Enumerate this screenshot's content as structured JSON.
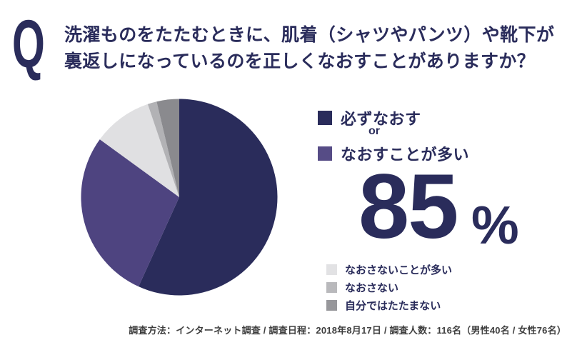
{
  "header": {
    "q_mark": "Q",
    "question_line1": "洗濯ものをたたむときに、肌着（シャツやパンツ）や靴下が",
    "question_line2": "裏返しになっているのを正しくなおすことがありますか？"
  },
  "chart_data": {
    "type": "pie",
    "title": "洗濯ものをたたむときに、肌着（シャツやパンツ）や靴下が裏返しになっているのを正しくなおすことがありますか？",
    "start_angle_deg": 0,
    "direction": "clockwise",
    "legend_position": "right",
    "slices": [
      {
        "label": "必ずなおす",
        "value": 56.8,
        "color": "#2A2C5B"
      },
      {
        "label": "なおすことが多い",
        "value": 28.2,
        "color": "#4E4480"
      },
      {
        "label": "なおさないことが多い",
        "value": 9.8,
        "color": "#E0E0E2"
      },
      {
        "label": "なおさない",
        "value": 1.5,
        "color": "#B2B2B5"
      },
      {
        "label": "自分ではたたまない",
        "value": 3.7,
        "color": "#8A8A8E"
      }
    ],
    "highlight": {
      "combined_labels": [
        "必ずなおす",
        "なおすことが多い"
      ],
      "combined_value_pct": 85
    }
  },
  "answer_panel": {
    "legend_primary": [
      {
        "label": "必ずなおす",
        "color": "#2A2C5B"
      },
      {
        "label": "なおすことが多い",
        "color": "#564C86"
      }
    ],
    "or_text": "or",
    "percent_value": "85",
    "percent_sign": "%",
    "legend_secondary": [
      {
        "label": "なおさないことが多い",
        "color": "#E2E2E4"
      },
      {
        "label": "なおさない",
        "color": "#B9B9BC"
      },
      {
        "label": "自分ではたたまない",
        "color": "#97979B"
      }
    ]
  },
  "footer": {
    "survey_info": "調査方法：インターネット調査 / 調査日程：2018年8月17日 / 調査人数：116名（男性40名 / 女性76名）"
  }
}
